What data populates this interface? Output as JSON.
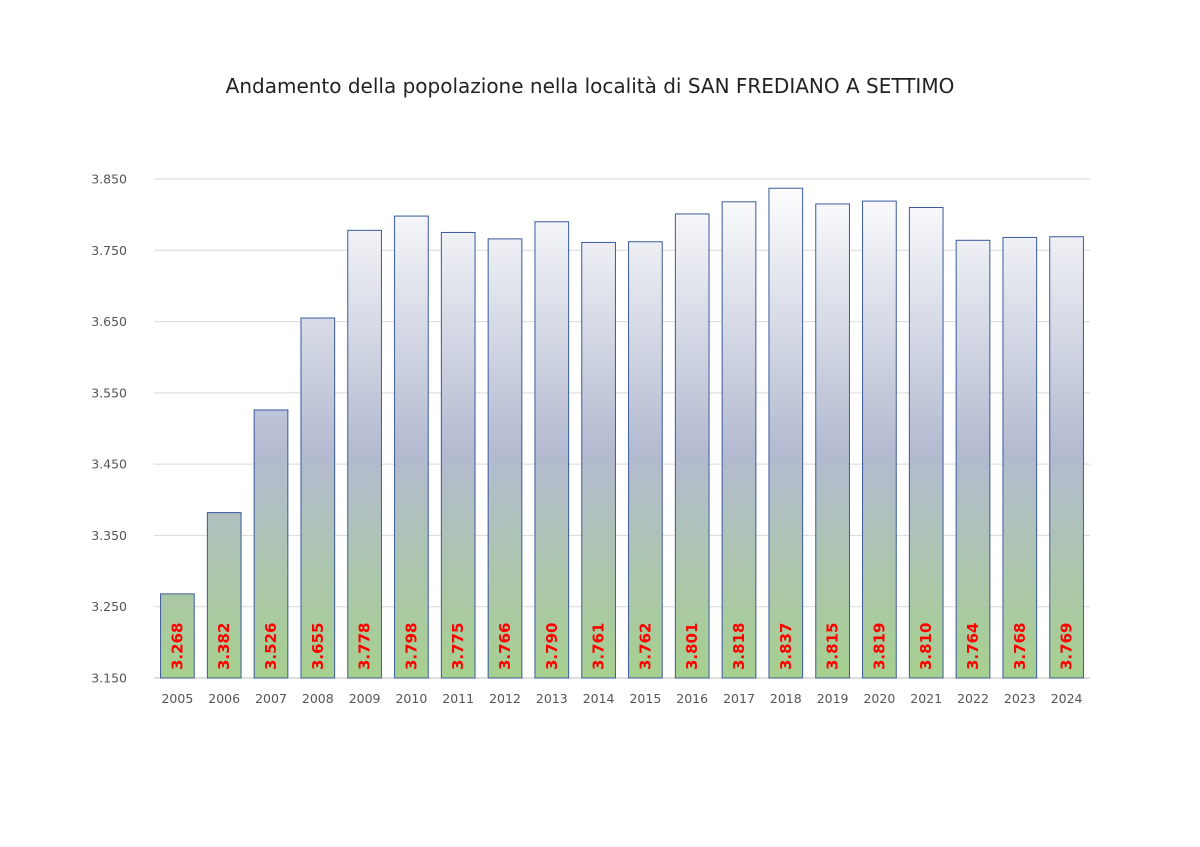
{
  "chart_data": {
    "type": "bar",
    "title": "Andamento della popolazione nella località di SAN FREDIANO A SETTIMO",
    "xlabel": "",
    "ylabel": "",
    "categories": [
      "2005",
      "2006",
      "2007",
      "2008",
      "2009",
      "2010",
      "2011",
      "2012",
      "2013",
      "2014",
      "2015",
      "2016",
      "2017",
      "2018",
      "2019",
      "2020",
      "2021",
      "2022",
      "2023",
      "2024"
    ],
    "values": [
      3268,
      3382,
      3526,
      3655,
      3778,
      3798,
      3775,
      3766,
      3790,
      3761,
      3762,
      3801,
      3818,
      3837,
      3815,
      3819,
      3810,
      3764,
      3768,
      3769
    ],
    "data_labels": [
      "3.268",
      "3.382",
      "3.526",
      "3.655",
      "3.778",
      "3.798",
      "3.775",
      "3.766",
      "3.790",
      "3.761",
      "3.762",
      "3.801",
      "3.818",
      "3.837",
      "3.815",
      "3.819",
      "3.810",
      "3.764",
      "3.768",
      "3.769"
    ],
    "ylim": [
      3150,
      3850
    ],
    "yticks": [
      3150,
      3250,
      3350,
      3450,
      3550,
      3650,
      3750,
      3850
    ],
    "ytick_labels": [
      "3.150",
      "3.250",
      "3.350",
      "3.450",
      "3.550",
      "3.650",
      "3.750",
      "3.850"
    ],
    "grid": true,
    "legend": "none",
    "colors": {
      "bar_top": "#ffffff",
      "bar_middle": "#b3bad0",
      "bar_bottom": "#a6d08e",
      "bar_border": "#3a5a9c",
      "gridline": "#d9d9d9",
      "data_label": "#ff0000",
      "tick_label": "#555555"
    }
  }
}
